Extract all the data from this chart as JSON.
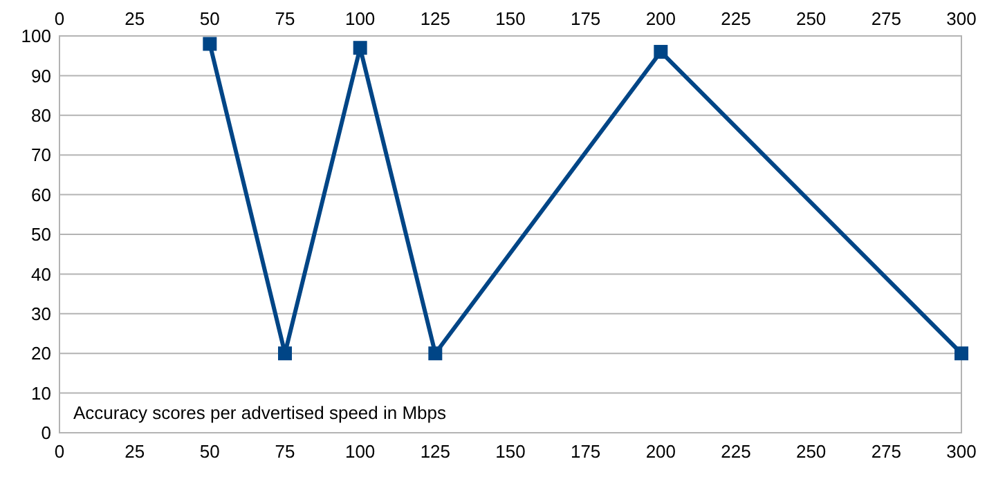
{
  "chart_data": {
    "type": "line",
    "x": [
      50,
      75,
      100,
      125,
      200,
      300
    ],
    "series": [
      {
        "color": "#004586",
        "values": [
          98,
          20,
          97,
          20,
          96,
          20
        ]
      }
    ],
    "xlim": [
      0,
      300
    ],
    "xticks": [
      0,
      25,
      50,
      75,
      100,
      125,
      150,
      175,
      200,
      225,
      250,
      275,
      300
    ],
    "x2lim": [
      0,
      300
    ],
    "x2ticks": [
      0,
      25,
      50,
      75,
      100,
      125,
      150,
      175,
      200,
      225,
      250,
      275,
      300
    ],
    "ylim": [
      0,
      100
    ],
    "yticks": [
      0,
      10,
      20,
      30,
      40,
      50,
      60,
      70,
      80,
      90,
      100
    ],
    "grid": "y",
    "marker": "square",
    "line_style": "solid",
    "annotations": [
      "Accuracy scores per advertised speed in Mbps"
    ]
  }
}
